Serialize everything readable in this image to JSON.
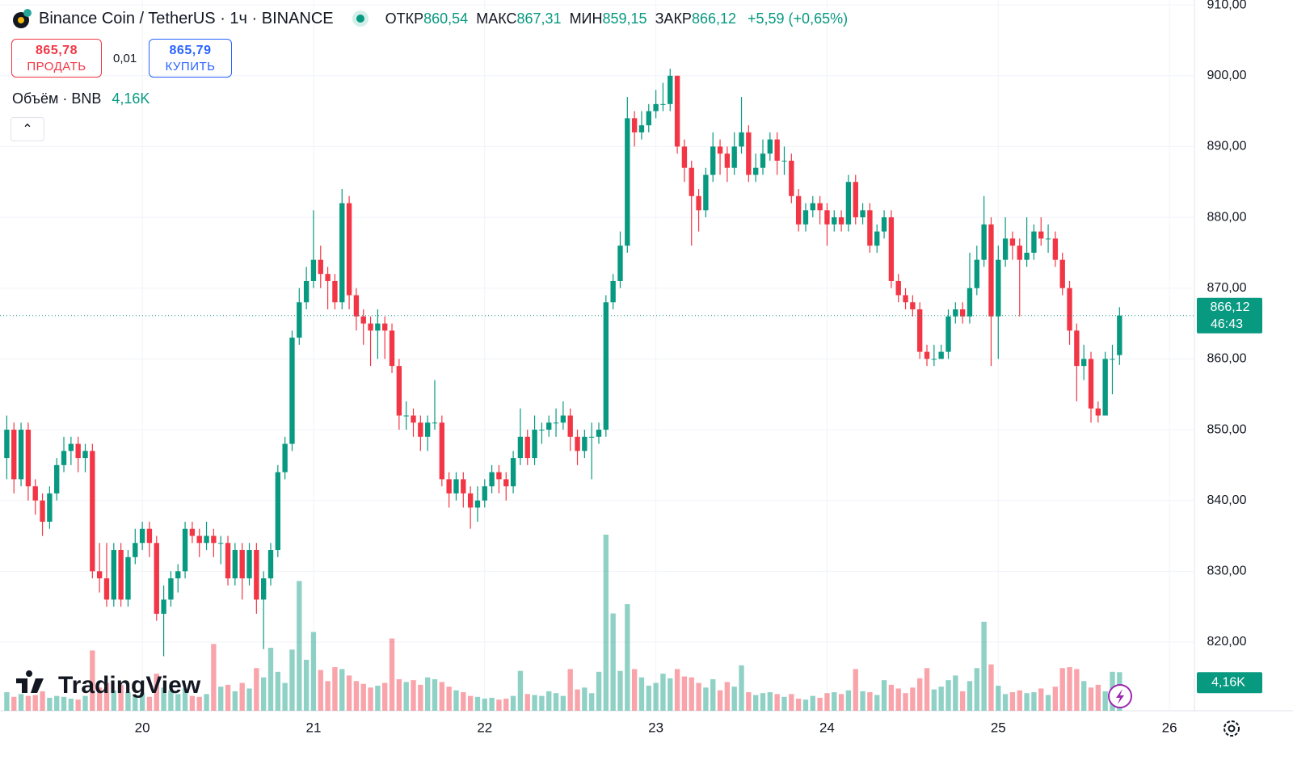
{
  "header": {
    "symbol": "Binance Coin / TetherUS · 1ч · BINANCE",
    "ohlc": [
      {
        "label": "ОТКР",
        "value": "860,54"
      },
      {
        "label": "МАКС",
        "value": "867,31"
      },
      {
        "label": "МИН",
        "value": "859,15"
      },
      {
        "label": "ЗАКР",
        "value": "866,12"
      }
    ],
    "change": "+5,59 (+0,65%)",
    "sell": {
      "price": "865,78",
      "label": "ПРОДАТЬ"
    },
    "spread": "0,01",
    "buy": {
      "price": "865,79",
      "label": "КУПИТЬ"
    },
    "volume_title": "Объём · BNB",
    "volume_value": "4,16K",
    "brand": "TradingView"
  },
  "chart_data": {
    "type": "candlestick",
    "categories": [
      null,
      null,
      null,
      null,
      null,
      null,
      null,
      null,
      null,
      null,
      null,
      null,
      null,
      null,
      null,
      null,
      null,
      null,
      null,
      "20",
      null,
      null,
      null,
      null,
      null,
      null,
      null,
      null,
      null,
      null,
      null,
      null,
      null,
      null,
      null,
      null,
      null,
      null,
      null,
      null,
      null,
      null,
      null,
      "21",
      null,
      null,
      null,
      null,
      null,
      null,
      null,
      null,
      null,
      null,
      null,
      null,
      null,
      null,
      null,
      null,
      null,
      null,
      null,
      null,
      null,
      null,
      null,
      "22",
      null,
      null,
      null,
      null,
      null,
      null,
      null,
      null,
      null,
      null,
      null,
      null,
      null,
      null,
      null,
      null,
      null,
      null,
      null,
      null,
      null,
      null,
      null,
      "23",
      null,
      null,
      null,
      null,
      null,
      null,
      null,
      null,
      null,
      null,
      null,
      null,
      null,
      null,
      null,
      null,
      null,
      null,
      null,
      null,
      null,
      null,
      null,
      "24",
      null,
      null,
      null,
      null,
      null,
      null,
      null,
      null,
      null,
      null,
      null,
      null,
      null,
      null,
      null,
      null,
      null,
      null,
      null,
      null,
      null,
      null,
      null,
      "25",
      null,
      null,
      null,
      null,
      null,
      null,
      null,
      null,
      null,
      null,
      null,
      null,
      null,
      null,
      null,
      null,
      null,
      null,
      null,
      null,
      null,
      null,
      null,
      "26",
      null,
      null,
      null
    ],
    "open": [
      846,
      850,
      843,
      850,
      842,
      840,
      837,
      841,
      845,
      847,
      848,
      846,
      847,
      830,
      829,
      826,
      833,
      826,
      832,
      834,
      836,
      834,
      824,
      826,
      829,
      830,
      836,
      835,
      834,
      835,
      834,
      834,
      829,
      833,
      829,
      833,
      826,
      829,
      833,
      844,
      848,
      863,
      868,
      871,
      874,
      872,
      871,
      868,
      882,
      869,
      866,
      865,
      864,
      865,
      864,
      859,
      852,
      852,
      851,
      849,
      851,
      851,
      843,
      841,
      843,
      841,
      839,
      840,
      842,
      844,
      843,
      842,
      846,
      849,
      846,
      850,
      850,
      851,
      851,
      852,
      849,
      847,
      849,
      849,
      850,
      868,
      871,
      876,
      894,
      892,
      893,
      895,
      896,
      896,
      900,
      890,
      887,
      883,
      881,
      886,
      890,
      889,
      887,
      890,
      892,
      886,
      887,
      889,
      891,
      888,
      888,
      883,
      879,
      881,
      882,
      881,
      879,
      880,
      879,
      885,
      880,
      881,
      876,
      878,
      880,
      871,
      869,
      868,
      867,
      861,
      860,
      860,
      861,
      866,
      867,
      866,
      870,
      874,
      879,
      866,
      874,
      877,
      876,
      874,
      875,
      878,
      877,
      877,
      874,
      870,
      864,
      859,
      860,
      853,
      852,
      860,
      860.54,
      null,
      null,
      null,
      null,
      null,
      null,
      null,
      null,
      null,
      null
    ],
    "high": [
      852,
      851,
      851,
      851,
      843,
      841,
      842,
      846,
      849,
      849,
      849,
      848,
      848,
      834,
      834,
      834,
      834,
      833,
      836,
      837,
      837,
      835,
      828,
      830,
      831,
      837,
      837,
      836,
      837,
      836,
      835,
      835,
      834,
      834,
      834,
      834,
      830,
      834,
      845,
      849,
      864,
      870,
      873,
      881,
      876,
      873,
      872,
      884,
      883,
      870,
      867,
      866,
      867,
      866,
      865,
      860,
      854,
      853,
      852,
      852,
      857,
      852,
      844,
      844,
      844,
      842,
      842,
      843,
      845,
      845,
      844,
      847,
      853,
      850,
      852,
      851,
      852,
      853,
      854,
      853,
      850,
      850,
      851,
      851,
      869,
      872,
      878,
      897,
      895,
      895,
      896,
      898,
      899,
      901,
      900,
      891,
      888,
      884,
      887,
      892,
      891,
      890,
      892,
      897,
      893,
      889,
      891,
      892,
      892,
      890,
      889,
      884,
      882,
      883,
      883,
      882,
      881,
      881,
      886,
      886,
      882,
      882,
      879,
      881,
      881,
      872,
      870,
      869,
      868,
      862,
      862,
      862,
      867,
      868,
      868,
      875,
      876,
      883,
      880,
      876,
      880,
      878,
      877,
      880,
      879,
      880,
      879,
      878,
      875,
      871,
      865,
      862,
      861,
      854,
      861,
      862,
      867.31,
      null,
      null,
      null,
      null,
      null,
      null,
      null,
      null,
      null,
      null
    ],
    "low": [
      843,
      841,
      842,
      840,
      838,
      835,
      836,
      840,
      844,
      845,
      844,
      844,
      829,
      827,
      825,
      825,
      825,
      825,
      831,
      833,
      832,
      823,
      818,
      825,
      827,
      829,
      834,
      832,
      833,
      832,
      831,
      828,
      828,
      826,
      828,
      824,
      819,
      828,
      832,
      843,
      847,
      862,
      867,
      870,
      870,
      867,
      867,
      867,
      867,
      864,
      862,
      859,
      860,
      860,
      858,
      850,
      850,
      849,
      847,
      847,
      850,
      842,
      839,
      840,
      839,
      836,
      837,
      839,
      841,
      841,
      840,
      841,
      845,
      845,
      845,
      848,
      849,
      849,
      850,
      847,
      845,
      846,
      843,
      848,
      849,
      867,
      870,
      875,
      890,
      891,
      892,
      894,
      895,
      895,
      889,
      885,
      876,
      878,
      880,
      885,
      886,
      885,
      886,
      889,
      885,
      885,
      886,
      888,
      886,
      886,
      882,
      878,
      878,
      880,
      879,
      876,
      878,
      878,
      878,
      879,
      879,
      875,
      875,
      877,
      870,
      868,
      867,
      866,
      860,
      859,
      859,
      860,
      860,
      865,
      865,
      865,
      869,
      873,
      859,
      860,
      873,
      874,
      866,
      873,
      874,
      876,
      875,
      873,
      869,
      862,
      854,
      857,
      851,
      851,
      852,
      855,
      859.15,
      null,
      null,
      null,
      null,
      null,
      null,
      null,
      null,
      null,
      null
    ],
    "close": [
      850,
      843,
      850,
      842,
      840,
      837,
      841,
      845,
      847,
      848,
      846,
      847,
      830,
      829,
      826,
      833,
      826,
      832,
      834,
      836,
      834,
      824,
      826,
      829,
      830,
      836,
      835,
      834,
      835,
      834,
      834,
      829,
      833,
      829,
      833,
      826,
      829,
      833,
      844,
      848,
      863,
      868,
      871,
      874,
      872,
      871,
      868,
      882,
      869,
      866,
      865,
      864,
      865,
      864,
      859,
      852,
      852,
      851,
      849,
      851,
      851,
      843,
      841,
      843,
      841,
      839,
      840,
      842,
      844,
      843,
      842,
      846,
      849,
      846,
      850,
      850,
      851,
      851,
      852,
      849,
      847,
      849,
      849,
      850,
      868,
      871,
      876,
      894,
      892,
      893,
      895,
      896,
      896,
      900,
      890,
      887,
      883,
      881,
      886,
      890,
      889,
      887,
      890,
      892,
      886,
      887,
      889,
      891,
      888,
      888,
      883,
      879,
      881,
      882,
      881,
      879,
      880,
      879,
      885,
      880,
      881,
      876,
      878,
      880,
      871,
      869,
      868,
      867,
      861,
      860,
      860,
      861,
      866,
      867,
      866,
      870,
      874,
      879,
      866,
      874,
      877,
      876,
      874,
      875,
      878,
      877,
      877,
      874,
      870,
      864,
      859,
      860,
      853,
      852,
      860,
      860,
      866.12,
      null,
      null,
      null,
      null,
      null,
      null,
      null,
      null,
      null,
      null
    ],
    "volume": [
      2.0,
      1.5,
      1.8,
      1.6,
      1.7,
      2.1,
      1.4,
      1.6,
      1.5,
      1.3,
      1.2,
      1.6,
      6.5,
      2.5,
      3.0,
      2.2,
      2.8,
      2.0,
      1.7,
      1.9,
      1.5,
      4.0,
      2.5,
      2.2,
      1.8,
      2.4,
      1.6,
      1.5,
      1.8,
      7.2,
      2.6,
      2.8,
      2.1,
      3.0,
      2.4,
      4.6,
      3.6,
      6.8,
      4.2,
      3.0,
      6.6,
      14.0,
      5.5,
      8.5,
      4.4,
      3.2,
      4.7,
      4.5,
      3.8,
      3.2,
      2.9,
      2.5,
      2.7,
      3.0,
      7.8,
      3.4,
      3.1,
      3.3,
      2.8,
      3.6,
      3.4,
      3.1,
      2.6,
      2.2,
      2.0,
      1.6,
      1.5,
      1.3,
      1.4,
      1.2,
      1.3,
      1.6,
      4.3,
      1.8,
      1.7,
      1.6,
      2.1,
      1.9,
      1.6,
      4.5,
      2.3,
      2.5,
      1.9,
      4.2,
      19.0,
      10.5,
      4.3,
      11.5,
      4.5,
      3.6,
      2.7,
      3.0,
      4.0,
      3.5,
      4.5,
      3.7,
      3.6,
      3.0,
      2.5,
      3.4,
      2.2,
      3.1,
      2.6,
      4.9,
      2.0,
      1.7,
      1.9,
      2.0,
      1.8,
      1.5,
      1.8,
      1.3,
      1.2,
      1.6,
      1.4,
      1.9,
      2.0,
      1.8,
      2.2,
      4.5,
      2.1,
      2.0,
      1.7,
      3.3,
      2.8,
      2.4,
      1.9,
      2.5,
      3.5,
      4.6,
      2.3,
      2.6,
      3.3,
      3.8,
      2.1,
      3.2,
      4.6,
      9.6,
      5.0,
      2.7,
      1.8,
      2.0,
      2.2,
      1.9,
      2.0,
      2.4,
      1.7,
      2.6,
      4.6,
      4.7,
      4.5,
      3.2,
      2.5,
      2.8,
      2.1,
      4.2,
      4.16,
      null,
      null,
      null,
      null,
      null,
      null,
      null,
      null,
      null,
      null
    ],
    "ylim": [
      810.3,
      910.7
    ],
    "yticks": [
      {
        "value": 820,
        "label": "820,00"
      },
      {
        "value": 830,
        "label": "830,00"
      },
      {
        "value": 840,
        "label": "840,00"
      },
      {
        "value": 850,
        "label": "850,00"
      },
      {
        "value": 860,
        "label": "860,00"
      },
      {
        "value": 870,
        "label": "870,00"
      },
      {
        "value": 880,
        "label": "880,00"
      },
      {
        "value": 890,
        "label": "890,00"
      },
      {
        "value": 900,
        "label": "900,00"
      },
      {
        "value": 910,
        "label": "910,00"
      }
    ],
    "last_price_label": "866,12",
    "countdown": "46:43",
    "up_color": "#089981",
    "down_color": "#f23645",
    "grid": true
  }
}
